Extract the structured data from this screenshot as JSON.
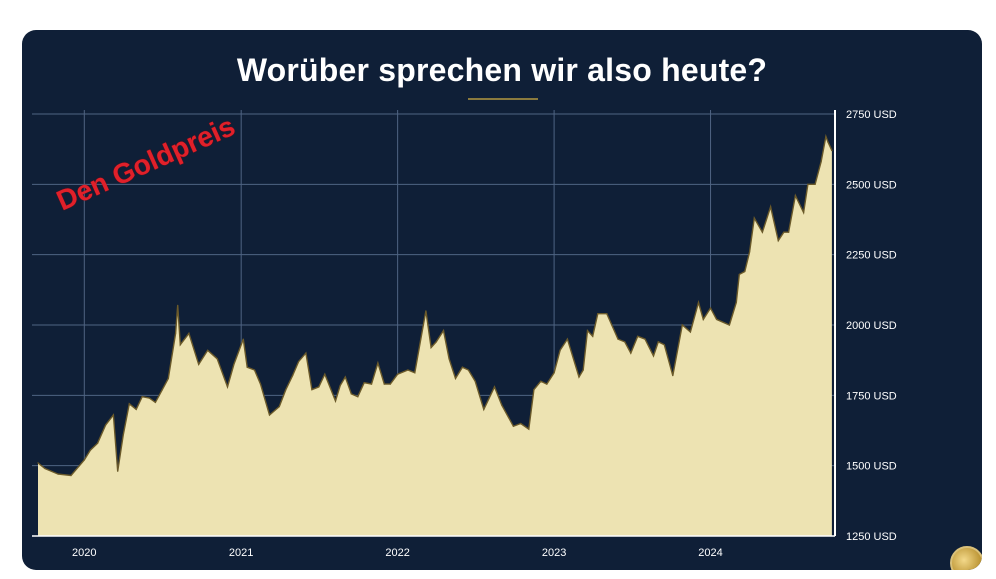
{
  "title": "Worüber sprechen wir also heute?",
  "annotation": "Den Goldpreis",
  "colors": {
    "background": "#0f1f37",
    "fill": "#ede3b2",
    "line": "#6b5a2a",
    "grid": "#4f6483",
    "annotation": "#e0202a"
  },
  "icons": {
    "corner": "coin-icon"
  },
  "chart_data": {
    "type": "area",
    "title": "",
    "xlabel": "",
    "ylabel": "",
    "x_ticks": [
      "2020",
      "2021",
      "2022",
      "2023",
      "2024"
    ],
    "y_ticks": [
      "1250 USD",
      "1500 USD",
      "1750 USD",
      "2000 USD",
      "2250 USD",
      "2500 USD",
      "2750 USD"
    ],
    "ylim": [
      1250,
      2750
    ],
    "xlim": [
      "2019-09-15",
      "2024-10-15"
    ],
    "y_axis_side": "right",
    "grid": true,
    "series": [
      {
        "x": [
          "2019-09-15",
          "2019-10-01",
          "2019-11-01",
          "2019-12-01",
          "2020-01-01",
          "2020-01-15",
          "2020-02-01",
          "2020-02-20",
          "2020-03-09",
          "2020-03-19",
          "2020-04-01",
          "2020-04-15",
          "2020-05-01",
          "2020-05-15",
          "2020-06-01",
          "2020-06-15",
          "2020-07-01",
          "2020-07-15",
          "2020-08-01",
          "2020-08-06",
          "2020-08-12",
          "2020-09-01",
          "2020-09-24",
          "2020-10-15",
          "2020-11-06",
          "2020-11-30",
          "2020-12-15",
          "2021-01-06",
          "2021-01-15",
          "2021-02-01",
          "2021-02-15",
          "2021-03-08",
          "2021-03-31",
          "2021-04-15",
          "2021-05-01",
          "2021-05-15",
          "2021-06-01",
          "2021-06-15",
          "2021-07-01",
          "2021-07-15",
          "2021-08-09",
          "2021-08-20",
          "2021-09-01",
          "2021-09-15",
          "2021-09-30",
          "2021-10-15",
          "2021-11-01",
          "2021-11-16",
          "2021-12-01",
          "2021-12-15",
          "2022-01-01",
          "2022-01-25",
          "2022-02-10",
          "2022-02-24",
          "2022-03-08",
          "2022-03-20",
          "2022-04-01",
          "2022-04-18",
          "2022-05-01",
          "2022-05-16",
          "2022-06-01",
          "2022-06-15",
          "2022-07-01",
          "2022-07-21",
          "2022-08-15",
          "2022-09-01",
          "2022-09-28",
          "2022-10-15",
          "2022-11-03",
          "2022-11-15",
          "2022-12-01",
          "2022-12-15",
          "2023-01-01",
          "2023-01-15",
          "2023-02-01",
          "2023-02-28",
          "2023-03-10",
          "2023-03-20",
          "2023-04-01",
          "2023-04-13",
          "2023-05-04",
          "2023-05-30",
          "2023-06-15",
          "2023-06-29",
          "2023-07-15",
          "2023-08-01",
          "2023-08-21",
          "2023-09-01",
          "2023-09-15",
          "2023-10-05",
          "2023-10-27",
          "2023-11-15",
          "2023-12-04",
          "2023-12-15",
          "2024-01-01",
          "2024-01-15",
          "2024-02-14",
          "2024-03-01",
          "2024-03-08",
          "2024-03-21",
          "2024-04-01",
          "2024-04-12",
          "2024-05-01",
          "2024-05-20",
          "2024-06-07",
          "2024-06-20",
          "2024-07-01",
          "2024-07-17",
          "2024-08-05",
          "2024-08-15",
          "2024-09-01",
          "2024-09-15",
          "2024-09-26",
          "2024-10-01",
          "2024-10-10"
        ],
        "values": [
          1510,
          1490,
          1470,
          1465,
          1520,
          1555,
          1580,
          1645,
          1680,
          1480,
          1610,
          1720,
          1700,
          1745,
          1740,
          1725,
          1770,
          1810,
          1970,
          2070,
          1930,
          1970,
          1860,
          1910,
          1880,
          1780,
          1860,
          1950,
          1850,
          1840,
          1790,
          1680,
          1710,
          1770,
          1820,
          1870,
          1900,
          1770,
          1780,
          1825,
          1730,
          1785,
          1815,
          1755,
          1745,
          1795,
          1790,
          1865,
          1790,
          1790,
          1825,
          1840,
          1830,
          1950,
          2050,
          1920,
          1940,
          1980,
          1880,
          1810,
          1850,
          1840,
          1800,
          1700,
          1780,
          1715,
          1640,
          1650,
          1630,
          1770,
          1800,
          1790,
          1830,
          1910,
          1950,
          1815,
          1840,
          1980,
          1960,
          2040,
          2040,
          1950,
          1940,
          1900,
          1960,
          1950,
          1890,
          1940,
          1930,
          1820,
          2000,
          1975,
          2080,
          2020,
          2060,
          2020,
          2000,
          2080,
          2180,
          2190,
          2260,
          2380,
          2330,
          2420,
          2300,
          2330,
          2330,
          2460,
          2400,
          2500,
          2500,
          2580,
          2670,
          2650,
          2620
        ]
      }
    ]
  }
}
